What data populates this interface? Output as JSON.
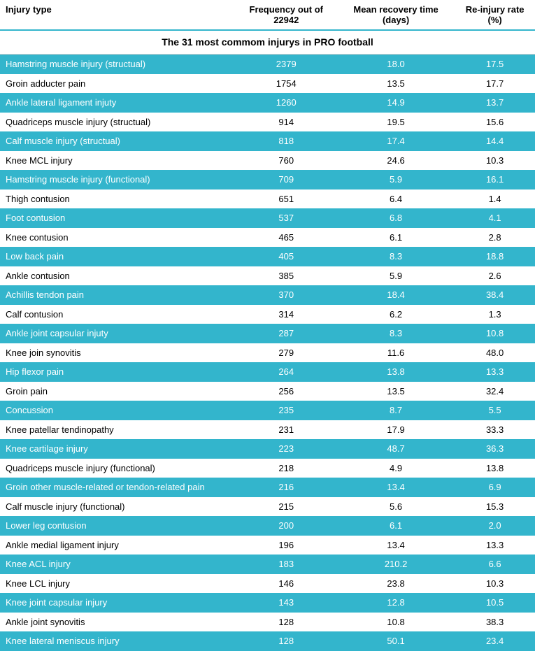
{
  "title": "The 31 most commom injurys in PRO football",
  "headers": {
    "c1": "Injury type",
    "c2": "Frequency out of 22942",
    "c3": "Mean recovery time (days)",
    "c4": "Re-injury rate (%)"
  },
  "style": {
    "stripe_color": "#33b5cc",
    "stripe_text": "#ffffff",
    "plain_bg": "#ffffff",
    "plain_text": "#000000",
    "title_border": "#33b5cc",
    "header_bottom_border": "#33b5cc",
    "font_family": "Arial",
    "title_fontsize": 14,
    "header_fontsize": 13,
    "cell_fontsize": 13,
    "col_widths_pct": [
      44,
      19,
      22,
      15
    ]
  },
  "rows": [
    {
      "c1": "Hamstring muscle injury (structual)",
      "c2": "2379",
      "c3": "18.0",
      "c4": "17.5"
    },
    {
      "c1": "Groin adducter pain",
      "c2": "1754",
      "c3": "13.5",
      "c4": "17.7"
    },
    {
      "c1": "Ankle lateral ligament injuty",
      "c2": "1260",
      "c3": "14.9",
      "c4": "13.7"
    },
    {
      "c1": "Quadriceps muscle injury (structual)",
      "c2": "914",
      "c3": "19.5",
      "c4": "15.6"
    },
    {
      "c1": "Calf muscle injury (structual)",
      "c2": "818",
      "c3": "17.4",
      "c4": "14.4"
    },
    {
      "c1": "Knee MCL injury",
      "c2": "760",
      "c3": "24.6",
      "c4": "10.3"
    },
    {
      "c1": "Hamstring muscle injury (functional)",
      "c2": "709",
      "c3": "5.9",
      "c4": "16.1"
    },
    {
      "c1": "Thigh contusion",
      "c2": "651",
      "c3": "6.4",
      "c4": "1.4"
    },
    {
      "c1": "Foot contusion",
      "c2": "537",
      "c3": "6.8",
      "c4": "4.1"
    },
    {
      "c1": "Knee contusion",
      "c2": "465",
      "c3": "6.1",
      "c4": "2.8"
    },
    {
      "c1": "Low back pain",
      "c2": "405",
      "c3": "8.3",
      "c4": "18.8"
    },
    {
      "c1": "Ankle contusion",
      "c2": "385",
      "c3": "5.9",
      "c4": "2.6"
    },
    {
      "c1": "Achillis tendon pain",
      "c2": "370",
      "c3": "18.4",
      "c4": "38.4"
    },
    {
      "c1": "Calf contusion",
      "c2": "314",
      "c3": "6.2",
      "c4": "1.3"
    },
    {
      "c1": "Ankle joint capsular injuty",
      "c2": "287",
      "c3": "8.3",
      "c4": "10.8"
    },
    {
      "c1": "Knee join synovitis",
      "c2": "279",
      "c3": "11.6",
      "c4": "48.0"
    },
    {
      "c1": "Hip flexor pain",
      "c2": "264",
      "c3": "13.8",
      "c4": "13.3"
    },
    {
      "c1": "Groin pain",
      "c2": "256",
      "c3": "13.5",
      "c4": "32.4"
    },
    {
      "c1": "Concussion",
      "c2": "235",
      "c3": "8.7",
      "c4": "5.5"
    },
    {
      "c1": "Knee patellar tendinopathy",
      "c2": "231",
      "c3": "17.9",
      "c4": "33.3"
    },
    {
      "c1": "Knee cartilage injury",
      "c2": "223",
      "c3": "48.7",
      "c4": "36.3"
    },
    {
      "c1": "Quadriceps muscle injury (functional)",
      "c2": "218",
      "c3": "4.9",
      "c4": "13.8"
    },
    {
      "c1": "Groin other muscle-related or tendon-related pain",
      "c2": "216",
      "c3": "13.4",
      "c4": "6.9"
    },
    {
      "c1": "Calf muscle injury (functional)",
      "c2": "215",
      "c3": "5.6",
      "c4": "15.3"
    },
    {
      "c1": "Lower leg contusion",
      "c2": "200",
      "c3": "6.1",
      "c4": "2.0"
    },
    {
      "c1": "Ankle medial ligament injury",
      "c2": "196",
      "c3": "13.4",
      "c4": "13.3"
    },
    {
      "c1": "Knee ACL injury",
      "c2": "183",
      "c3": "210.2",
      "c4": "6.6"
    },
    {
      "c1": "Knee LCL injury",
      "c2": "146",
      "c3": "23.8",
      "c4": "10.3"
    },
    {
      "c1": "Knee joint capsular injury",
      "c2": "143",
      "c3": "12.8",
      "c4": "10.5"
    },
    {
      "c1": "Ankle joint synovitis",
      "c2": "128",
      "c3": "10.8",
      "c4": "38.3"
    },
    {
      "c1": "Knee lateral meniscus injury",
      "c2": "128",
      "c3": "50.1",
      "c4": "23.4"
    }
  ]
}
